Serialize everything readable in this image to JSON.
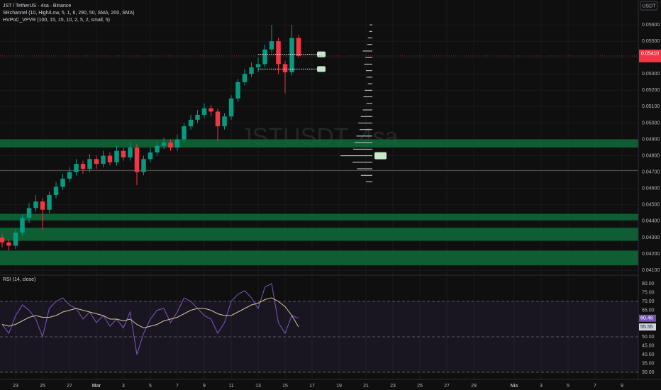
{
  "header": {
    "symbol": "JST / TetherUS · 4sa · Binance",
    "indicators": [
      "SRchannel (10, High/Low, 5, 1, 6, 290, 50, SMA, 200, SMA)",
      "HVPoC_VPVR (100, 15, 15, 10, 2, 5, 2, small, 5)"
    ],
    "currency": "USDT",
    "watermark": "JSTUSDT, 4sa"
  },
  "chart_data": [
    {
      "type": "candlestick",
      "x": [
        0,
        0.5,
        1,
        1.5,
        2,
        2.5,
        3,
        3.5,
        4,
        4.5,
        5,
        5.5,
        6,
        6.5,
        7,
        7.5,
        8,
        8.5,
        9,
        9.5,
        10,
        10.5,
        11,
        11.5,
        12,
        12.5,
        13,
        13.5,
        14,
        14.5,
        15,
        15.5,
        16,
        16.5,
        17,
        17.5,
        18,
        18.5,
        19,
        19.5,
        20,
        20.5,
        21,
        21.5,
        22
      ],
      "open": [
        0.043,
        0.0427,
        0.0425,
        0.0433,
        0.0442,
        0.0448,
        0.0452,
        0.0447,
        0.0456,
        0.0461,
        0.0466,
        0.047,
        0.0475,
        0.0472,
        0.0478,
        0.0475,
        0.048,
        0.0476,
        0.0483,
        0.0479,
        0.0485,
        0.047,
        0.0478,
        0.0482,
        0.0486,
        0.0488,
        0.0485,
        0.049,
        0.0498,
        0.0502,
        0.0505,
        0.0509,
        0.0507,
        0.0498,
        0.0504,
        0.0515,
        0.0525,
        0.053,
        0.0534,
        0.0536,
        0.0545,
        0.055,
        0.0536,
        0.0531,
        0.0552
      ],
      "high": [
        0.0432,
        0.0429,
        0.0435,
        0.0444,
        0.0451,
        0.0456,
        0.0454,
        0.0458,
        0.0464,
        0.0469,
        0.0473,
        0.0478,
        0.0477,
        0.0481,
        0.048,
        0.0483,
        0.0482,
        0.0486,
        0.0485,
        0.0488,
        0.0487,
        0.048,
        0.0485,
        0.0488,
        0.0491,
        0.049,
        0.0493,
        0.05,
        0.0505,
        0.0508,
        0.0512,
        0.0511,
        0.0509,
        0.0506,
        0.0517,
        0.0527,
        0.0533,
        0.0537,
        0.054,
        0.0548,
        0.056,
        0.0552,
        0.0538,
        0.056,
        0.0554
      ],
      "low": [
        0.0424,
        0.0422,
        0.0423,
        0.0431,
        0.0439,
        0.0446,
        0.0435,
        0.0445,
        0.0454,
        0.0459,
        0.0464,
        0.0468,
        0.0469,
        0.047,
        0.0472,
        0.0473,
        0.0474,
        0.0474,
        0.0477,
        0.0477,
        0.0462,
        0.0468,
        0.0476,
        0.048,
        0.0484,
        0.0483,
        0.0483,
        0.0488,
        0.0496,
        0.05,
        0.0503,
        0.0504,
        0.0489,
        0.0496,
        0.0502,
        0.0513,
        0.0523,
        0.0528,
        0.0531,
        0.0534,
        0.0543,
        0.053,
        0.0518,
        0.0529,
        0.054
      ],
      "close": [
        0.0427,
        0.0425,
        0.0433,
        0.0442,
        0.0448,
        0.0452,
        0.0447,
        0.0456,
        0.0461,
        0.0466,
        0.047,
        0.0475,
        0.0472,
        0.0478,
        0.0475,
        0.048,
        0.0476,
        0.0483,
        0.0479,
        0.0485,
        0.047,
        0.0478,
        0.0482,
        0.0486,
        0.0488,
        0.0485,
        0.049,
        0.0498,
        0.0502,
        0.0505,
        0.0509,
        0.0507,
        0.0498,
        0.0504,
        0.0515,
        0.0525,
        0.053,
        0.0534,
        0.0536,
        0.0545,
        0.055,
        0.0536,
        0.0531,
        0.0552,
        0.0541
      ],
      "last_label": "0.05410",
      "up_color": "#089981",
      "down_color": "#f23645",
      "zone_color": "#0e6b3a",
      "xlim": [
        -0.158,
        47.21
      ],
      "xticks": [
        {
          "value": 1,
          "label": "23"
        },
        {
          "value": 3,
          "label": "25"
        },
        {
          "value": 5,
          "label": "27"
        },
        {
          "value": 7,
          "label": "Mar"
        },
        {
          "value": 9,
          "label": "3"
        },
        {
          "value": 11,
          "label": "5"
        },
        {
          "value": 13,
          "label": "7"
        },
        {
          "value": 15,
          "label": "9"
        },
        {
          "value": 17,
          "label": "11"
        },
        {
          "value": 19,
          "label": "13"
        },
        {
          "value": 21,
          "label": "15"
        },
        {
          "value": 23,
          "label": "17"
        },
        {
          "value": 25,
          "label": "19"
        },
        {
          "value": 27,
          "label": "21"
        },
        {
          "value": 29,
          "label": "23"
        },
        {
          "value": 31,
          "label": "25"
        },
        {
          "value": 33,
          "label": "27"
        },
        {
          "value": 35,
          "label": "29"
        },
        {
          "value": 38,
          "label": "Nis"
        },
        {
          "value": 40,
          "label": "3"
        },
        {
          "value": 42,
          "label": "5"
        },
        {
          "value": 44,
          "label": "7"
        },
        {
          "value": 46,
          "label": "9"
        }
      ],
      "ylim": [
        0.0407,
        0.05752
      ],
      "yticks": [
        {
          "value": 0.041,
          "label": "0.04100"
        },
        {
          "value": 0.042,
          "label": "0.04200"
        },
        {
          "value": 0.043,
          "label": "0.04300"
        },
        {
          "value": 0.044,
          "label": "0.04400"
        },
        {
          "value": 0.045,
          "label": "0.04500"
        },
        {
          "value": 0.046,
          "label": "0.04600"
        },
        {
          "value": 0.047,
          "label": "0.04700"
        },
        {
          "value": 0.048,
          "label": "0.04800"
        },
        {
          "value": 0.049,
          "label": "0.04900"
        },
        {
          "value": 0.05,
          "label": "0.05000"
        },
        {
          "value": 0.051,
          "label": "0.05100"
        },
        {
          "value": 0.052,
          "label": "0.05200"
        },
        {
          "value": 0.053,
          "label": "0.05300"
        },
        {
          "value": 0.054,
          "label": "0.05400"
        },
        {
          "value": 0.055,
          "label": "0.05500"
        },
        {
          "value": 0.056,
          "label": "0.05600"
        }
      ],
      "zones": [
        {
          "low": 0.0485,
          "high": 0.049
        },
        {
          "low": 0.04405,
          "high": 0.04445
        },
        {
          "low": 0.0428,
          "high": 0.0436
        },
        {
          "low": 0.0413,
          "high": 0.0422
        }
      ],
      "sr_levels": [
        0.0542,
        0.0533
      ],
      "horizontal_line": 0.0471,
      "volume_profile": {
        "prices": [
          0.056,
          0.0556,
          0.0552,
          0.0548,
          0.0544,
          0.054,
          0.0536,
          0.0532,
          0.0528,
          0.0524,
          0.052,
          0.0516,
          0.0512,
          0.0508,
          0.0504,
          0.05,
          0.0496,
          0.0492,
          0.0488,
          0.0484,
          0.048,
          0.0476,
          0.0472,
          0.0468,
          0.0464
        ],
        "volumes": [
          8,
          10,
          14,
          16,
          30,
          22,
          26,
          20,
          18,
          14,
          24,
          28,
          18,
          30,
          36,
          44,
          40,
          50,
          55,
          60,
          100,
          62,
          48,
          36,
          20
        ]
      }
    },
    {
      "type": "line",
      "title": "RSI (14, close)",
      "x": [
        0,
        0.5,
        1,
        1.5,
        2,
        2.5,
        3,
        3.5,
        4,
        4.5,
        5,
        5.5,
        6,
        6.5,
        7,
        7.5,
        8,
        8.5,
        9,
        9.5,
        10,
        10.5,
        11,
        11.5,
        12,
        12.5,
        13,
        13.5,
        14,
        14.5,
        15,
        15.5,
        16,
        16.5,
        17,
        17.5,
        18,
        18.5,
        19,
        19.5,
        20,
        20.5,
        21,
        21.5,
        22
      ],
      "series": [
        {
          "color": "#7e57c2",
          "values": [
            57,
            52,
            62,
            68,
            65,
            60,
            50,
            66,
            70,
            72,
            68,
            66,
            60,
            64,
            58,
            62,
            56,
            60,
            55,
            64,
            40,
            52,
            60,
            65,
            66,
            58,
            64,
            72,
            70,
            66,
            62,
            60,
            52,
            58,
            70,
            74,
            76,
            72,
            66,
            78,
            80,
            58,
            52,
            62,
            60.48
          ]
        },
        {
          "color": "#d6c49a",
          "values": [
            57,
            56,
            57,
            59,
            61,
            62,
            61,
            61,
            62,
            64,
            65,
            66,
            65,
            64,
            63,
            62,
            60,
            60,
            59,
            60,
            57,
            55,
            56,
            57,
            59,
            60,
            61,
            63,
            65,
            66,
            66,
            65,
            63,
            62,
            62,
            64,
            66,
            68,
            69,
            71,
            72,
            70,
            67,
            62,
            55.55
          ]
        }
      ],
      "ylim": [
        26,
        84
      ],
      "yticks": [
        {
          "value": 30,
          "label": "30.00"
        },
        {
          "value": 35,
          "label": "35.00"
        },
        {
          "value": 40,
          "label": "40.00"
        },
        {
          "value": 45,
          "label": "45.00"
        },
        {
          "value": 50,
          "label": "50.00"
        },
        {
          "value": 55,
          "label": "55.00"
        },
        {
          "value": 60,
          "label": "60.00"
        },
        {
          "value": 65,
          "label": "65.00"
        },
        {
          "value": 70,
          "label": "70.00"
        },
        {
          "value": 75,
          "label": "75.00"
        },
        {
          "value": 80,
          "label": "80.00"
        }
      ],
      "bands": [
        30,
        70
      ],
      "mid": 50
    }
  ]
}
